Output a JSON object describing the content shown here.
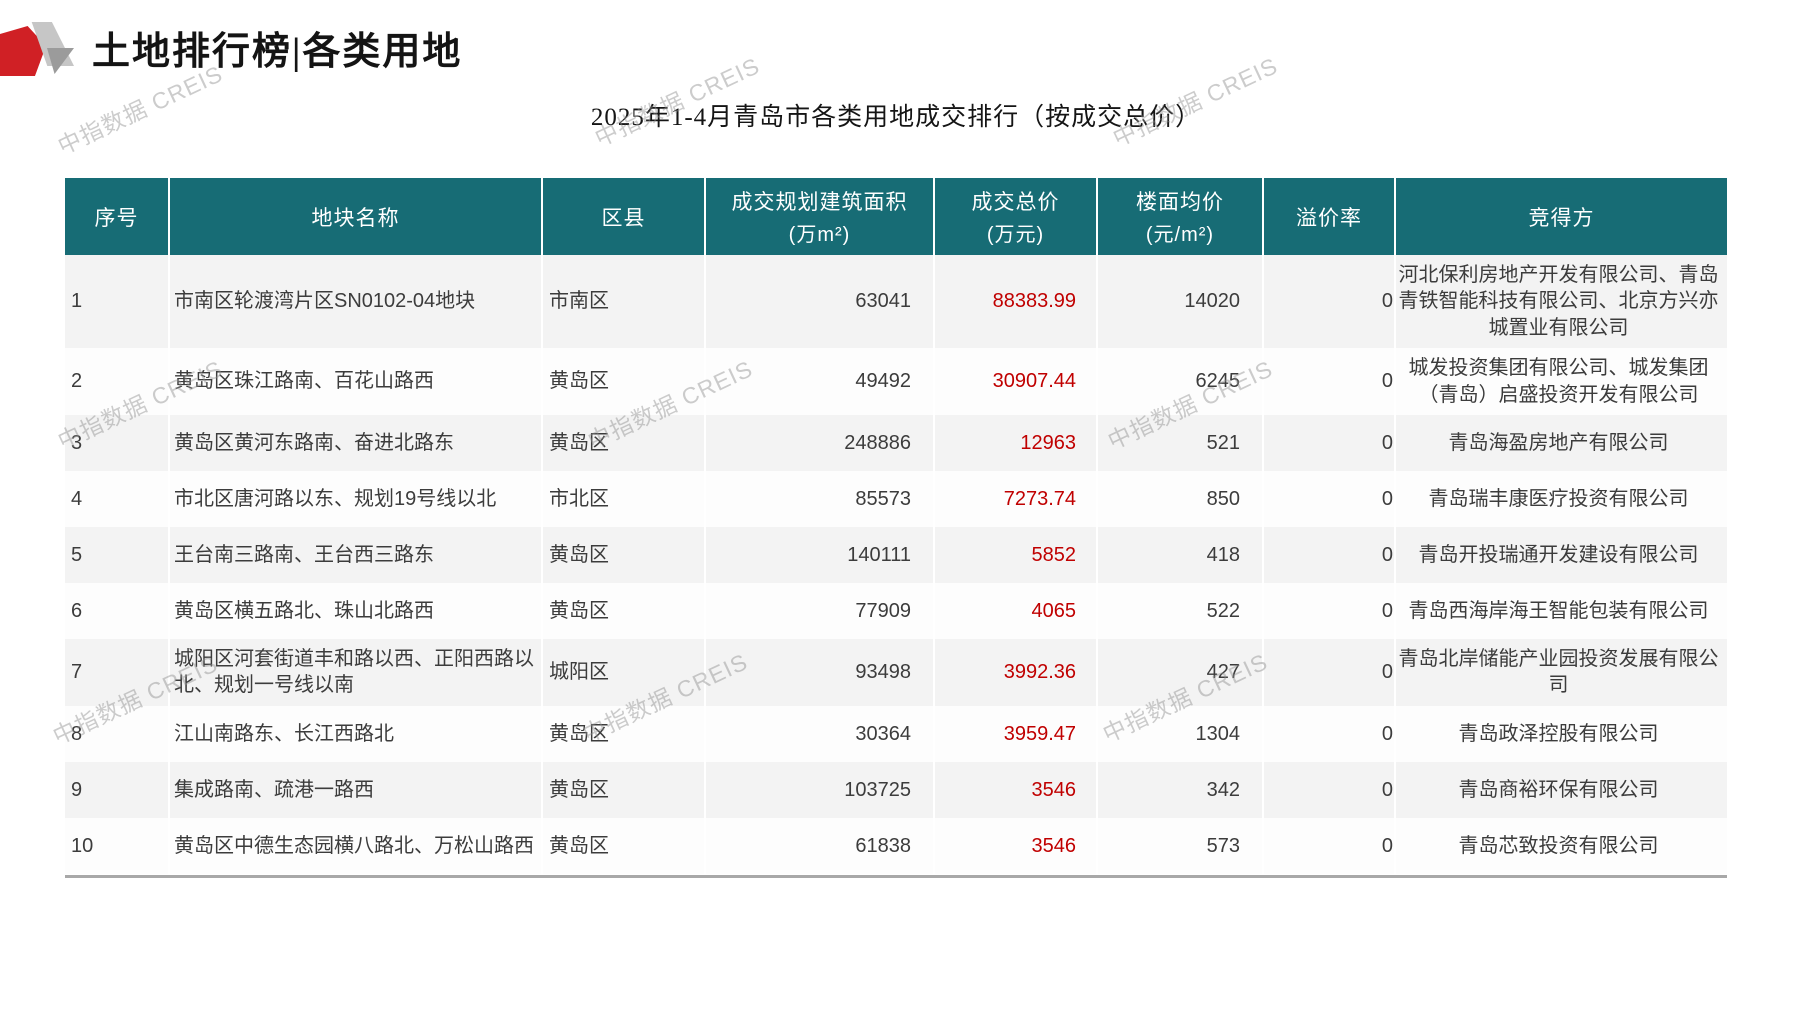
{
  "page": {
    "title": "土地排行榜|各类用地",
    "subtitle": "2025年1-4月青岛市各类用地成交排行（按成交总价）",
    "watermark": "中指数据 CREIS"
  },
  "colors": {
    "header_bg": "#176c75",
    "price_red": "#c00000",
    "logo_red": "#d02025",
    "row_alt_gray": "#f3f3f3",
    "divider_gray": "#a8a8a8"
  },
  "table": {
    "columns": [
      {
        "key": "rank",
        "label": "序号",
        "unit": ""
      },
      {
        "key": "name",
        "label": "地块名称",
        "unit": ""
      },
      {
        "key": "district",
        "label": "区县",
        "unit": ""
      },
      {
        "key": "area",
        "label": "成交规划建筑面积",
        "unit": "(万m²)"
      },
      {
        "key": "price",
        "label": "成交总价",
        "unit": "(万元)"
      },
      {
        "key": "floor_price",
        "label": "楼面均价",
        "unit": "(元/m²)"
      },
      {
        "key": "premium",
        "label": "溢价率",
        "unit": ""
      },
      {
        "key": "winner",
        "label": "竞得方",
        "unit": ""
      }
    ],
    "rows": [
      {
        "rank": "1",
        "name": "市南区轮渡湾片区SN0102-04地块",
        "district": "市南区",
        "area": "63041",
        "price": "88383.99",
        "floor_price": "14020",
        "premium": "0",
        "winner": "河北保利房地产开发有限公司、青岛青铁智能科技有限公司、北京方兴亦城置业有限公司"
      },
      {
        "rank": "2",
        "name": "黄岛区珠江路南、百花山路西",
        "district": "黄岛区",
        "area": "49492",
        "price": "30907.44",
        "floor_price": "6245",
        "premium": "0",
        "winner": "城发投资集团有限公司、城发集团（青岛）启盛投资开发有限公司"
      },
      {
        "rank": "3",
        "name": "黄岛区黄河东路南、奋进北路东",
        "district": "黄岛区",
        "area": "248886",
        "price": "12963",
        "floor_price": "521",
        "premium": "0",
        "winner": "青岛海盈房地产有限公司"
      },
      {
        "rank": "4",
        "name": "市北区唐河路以东、规划19号线以北",
        "district": "市北区",
        "area": "85573",
        "price": "7273.74",
        "floor_price": "850",
        "premium": "0",
        "winner": "青岛瑞丰康医疗投资有限公司"
      },
      {
        "rank": "5",
        "name": "王台南三路南、王台西三路东",
        "district": "黄岛区",
        "area": "140111",
        "price": "5852",
        "floor_price": "418",
        "premium": "0",
        "winner": "青岛开投瑞通开发建设有限公司"
      },
      {
        "rank": "6",
        "name": "黄岛区横五路北、珠山北路西",
        "district": "黄岛区",
        "area": "77909",
        "price": "4065",
        "floor_price": "522",
        "premium": "0",
        "winner": "青岛西海岸海王智能包装有限公司"
      },
      {
        "rank": "7",
        "name": "城阳区河套街道丰和路以西、正阳西路以北、规划一号线以南",
        "district": "城阳区",
        "area": "93498",
        "price": "3992.36",
        "floor_price": "427",
        "premium": "0",
        "winner": "青岛北岸储能产业园投资发展有限公司"
      },
      {
        "rank": "8",
        "name": "江山南路东、长江西路北",
        "district": "黄岛区",
        "area": "30364",
        "price": "3959.47",
        "floor_price": "1304",
        "premium": "0",
        "winner": "青岛政泽控股有限公司"
      },
      {
        "rank": "9",
        "name": "集成路南、疏港一路西",
        "district": "黄岛区",
        "area": "103725",
        "price": "3546",
        "floor_price": "342",
        "premium": "0",
        "winner": "青岛商裕环保有限公司"
      },
      {
        "rank": "10",
        "name": "黄岛区中德生态园横八路北、万松山路西",
        "district": "黄岛区",
        "area": "61838",
        "price": "3546",
        "floor_price": "573",
        "premium": "0",
        "winner": "青岛芯致投资有限公司"
      }
    ]
  }
}
